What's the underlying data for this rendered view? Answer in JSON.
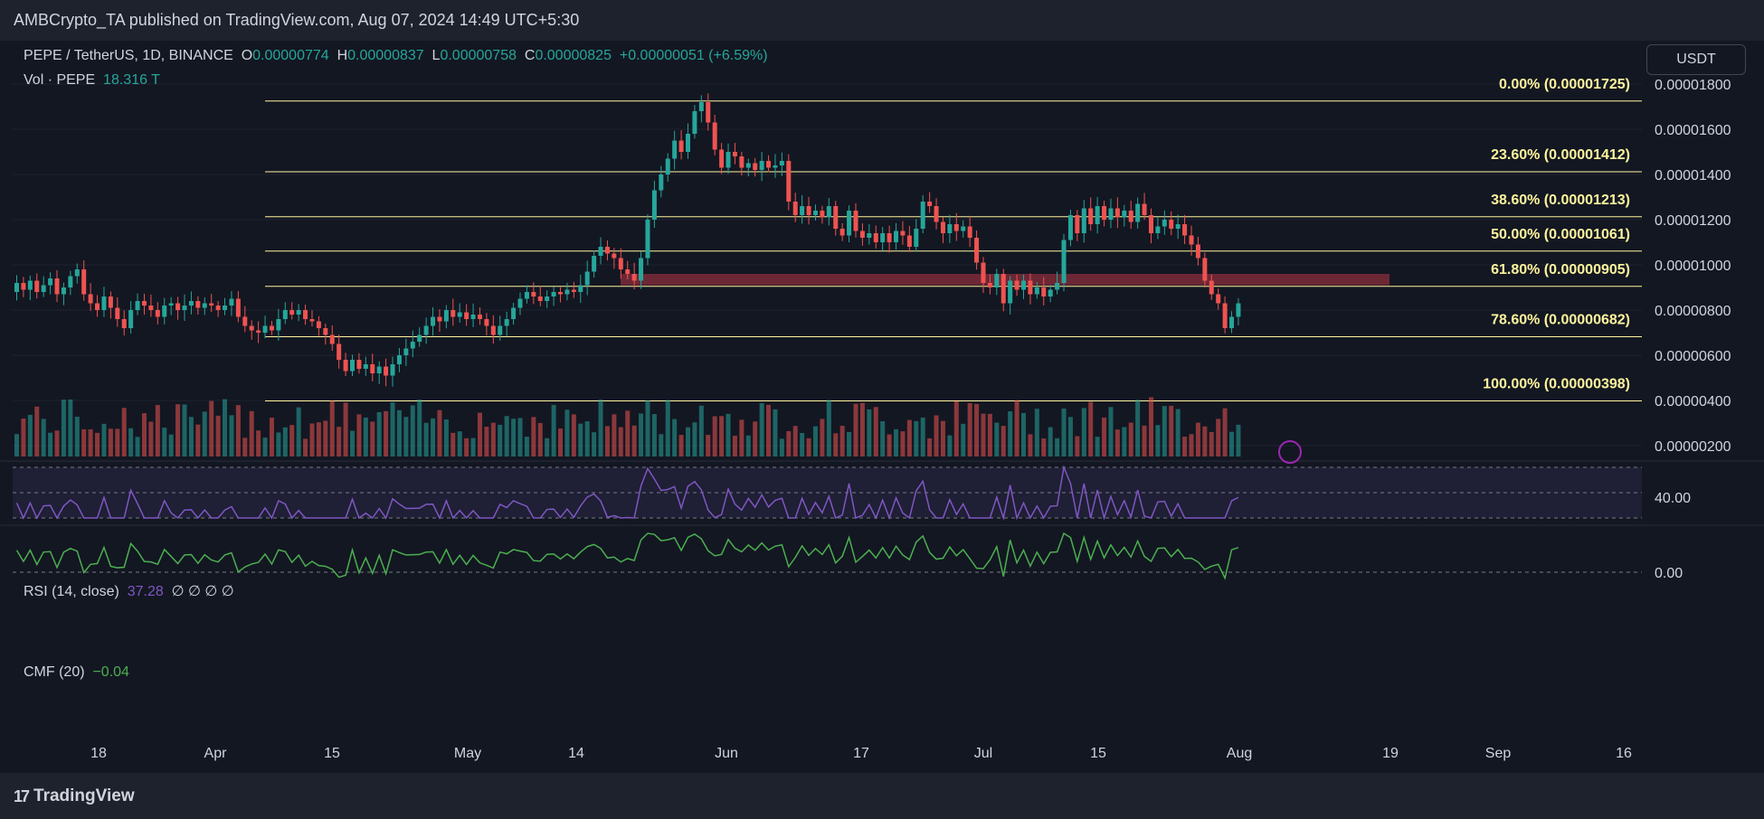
{
  "header": {
    "publisher": "AMBCrypto_TA published on TradingView.com, Aug 07, 2024 14:49 UTC+5:30"
  },
  "symbol": {
    "title": "PEPE / TetherUS, 1D, BINANCE",
    "o_label": "O",
    "o_value": "0.00000774",
    "h_label": "H",
    "h_value": "0.00000837",
    "l_label": "L",
    "l_value": "0.00000758",
    "c_label": "C",
    "c_value": "0.00000825",
    "change": "+0.00000051 (+6.59%)",
    "vol_label": "Vol · PEPE",
    "vol_value": "18.316 T"
  },
  "currency_button": "USDT",
  "rsi": {
    "label": "RSI (14, close)",
    "value": "37.28",
    "extras": "∅ ∅ ∅ ∅",
    "axis_label": "40.00"
  },
  "cmf": {
    "label": "CMF (20)",
    "value": "−0.04",
    "axis_label": "0.00"
  },
  "branding": {
    "name": "TradingView"
  },
  "colors": {
    "up": "#26a69a",
    "down": "#ef5350",
    "fib": "#fff59d",
    "zone": "#8b2e3c",
    "rsi": "#7e57c2",
    "cmf": "#4caf50"
  },
  "chart_data": {
    "type": "candlestick",
    "price_axis_ticks": [
      "0.00001800",
      "0.00001600",
      "0.00001400",
      "0.00001200",
      "0.00001000",
      "0.00000800",
      "0.00000600",
      "0.00000400",
      "0.00000200"
    ],
    "price_axis_values": [
      1.8e-05,
      1.6e-05,
      1.4e-05,
      1.2e-05,
      1e-05,
      8e-06,
      6e-06,
      4e-06,
      2e-06
    ],
    "x_ticks": [
      "18",
      "Apr",
      "15",
      "May",
      "14",
      "Jun",
      "17",
      "Jul",
      "15",
      "Aug",
      "19",
      "Sep",
      "16"
    ],
    "fib_levels": [
      {
        "label": "0.00% (0.00001725)",
        "price": 1.725e-05
      },
      {
        "label": "23.60% (0.00001412)",
        "price": 1.412e-05
      },
      {
        "label": "38.60% (0.00001213)",
        "price": 1.213e-05
      },
      {
        "label": "50.00% (0.00001061)",
        "price": 1.061e-05
      },
      {
        "label": "61.80% (0.00000905)",
        "price": 9.05e-06
      },
      {
        "label": "78.60% (0.00000682)",
        "price": 6.82e-06
      },
      {
        "label": "100.00% (0.00000398)",
        "price": 3.98e-06
      }
    ],
    "resistance_zone": {
      "low": 9.1e-06,
      "high": 9.6e-06
    },
    "closes": [
      9.2e-06,
      8.9e-06,
      9.3e-06,
      8.8e-06,
      9.1e-06,
      9.4e-06,
      8.7e-06,
      9e-06,
      9.5e-06,
      9.8e-06,
      8.7e-06,
      8.3e-06,
      8e-06,
      8.6e-06,
      8.1e-06,
      7.6e-06,
      7.2e-06,
      8e-06,
      8.4e-06,
      8.2e-06,
      8e-06,
      7.7e-06,
      8.2e-06,
      8.3e-06,
      8e-06,
      8.2e-06,
      8.4e-06,
      8.1e-06,
      8.3e-06,
      8.2e-06,
      8e-06,
      8.2e-06,
      8.5e-06,
      7.7e-06,
      7.3e-06,
      7.1e-06,
      7e-06,
      7.3e-06,
      7.1e-06,
      7.6e-06,
      8e-06,
      7.8e-06,
      8e-06,
      7.6e-06,
      7.5e-06,
      7.2e-06,
      6.9e-06,
      6.5e-06,
      5.8e-06,
      5.3e-06,
      5.8e-06,
      5.4e-06,
      5.6e-06,
      5.2e-06,
      5.5e-06,
      5.1e-06,
      5.6e-06,
      6e-06,
      6.3e-06,
      6.6e-06,
      6.9e-06,
      7.3e-06,
      7.7e-06,
      7.5e-06,
      8e-06,
      7.7e-06,
      7.9e-06,
      7.6e-06,
      7.8e-06,
      7.6e-06,
      7.3e-06,
      6.9e-06,
      7.3e-06,
      7.6e-06,
      8.1e-06,
      8.5e-06,
      8.8e-06,
      8.6e-06,
      8.4e-06,
      8.6e-06,
      8.8e-06,
      8.7e-06,
      8.9e-06,
      8.8e-06,
      9.1e-06,
      9.7e-06,
      1.04e-05,
      1.08e-05,
      1.05e-05,
      1.03e-05,
      9.8e-06,
      9.6e-06,
      9.3e-06,
      1.03e-05,
      1.2e-05,
      1.33e-05,
      1.4e-05,
      1.47e-05,
      1.55e-05,
      1.5e-05,
      1.58e-05,
      1.68e-05,
      1.72e-05,
      1.63e-05,
      1.51e-05,
      1.43e-05,
      1.5e-05,
      1.48e-05,
      1.43e-05,
      1.45e-05,
      1.42e-05,
      1.46e-05,
      1.43e-05,
      1.44e-05,
      1.46e-05,
      1.28e-05,
      1.22e-05,
      1.26e-05,
      1.22e-05,
      1.24e-05,
      1.21e-05,
      1.26e-05,
      1.16e-05,
      1.13e-05,
      1.24e-05,
      1.15e-05,
      1.12e-05,
      1.14e-05,
      1.1e-05,
      1.14e-05,
      1.1e-05,
      1.15e-05,
      1.13e-05,
      1.08e-05,
      1.16e-05,
      1.28e-05,
      1.26e-05,
      1.19e-05,
      1.14e-05,
      1.18e-05,
      1.15e-05,
      1.17e-05,
      1.12e-05,
      1.01e-05,
      9.2e-06,
      9e-06,
      9.6e-06,
      8.3e-06,
      9.3e-06,
      8.9e-06,
      9.3e-06,
      8.7e-06,
      9e-06,
      8.6e-06,
      8.9e-06,
      9.2e-06,
      1.11e-05,
      1.22e-05,
      1.14e-05,
      1.25e-05,
      1.18e-05,
      1.26e-05,
      1.2e-05,
      1.25e-05,
      1.21e-05,
      1.24e-05,
      1.19e-05,
      1.27e-05,
      1.22e-05,
      1.14e-05,
      1.17e-05,
      1.2e-05,
      1.16e-05,
      1.18e-05,
      1.13e-05,
      1.09e-05,
      1.03e-05,
      9.3e-06,
      8.7e-06,
      8.3e-06,
      7.2e-06,
      7.7e-06,
      8.3e-06
    ]
  }
}
